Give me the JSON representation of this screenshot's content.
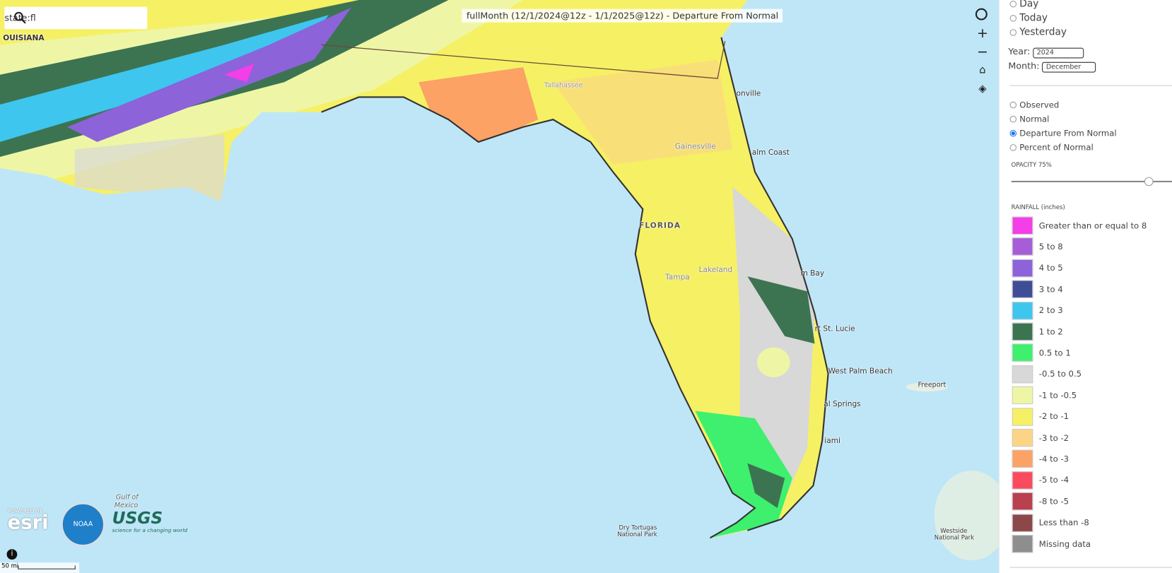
{
  "search": {
    "query": "state:fl"
  },
  "map": {
    "title": "fullMonth (12/1/2024@12z - 1/1/2025@12z) - Departure From Normal",
    "labels": [
      "OUISIANA",
      "onville",
      "alm Coast",
      "Gainesville",
      "FLORIDA",
      "Lakeland",
      "Tampa",
      "m Bay",
      "rt St. Lucie",
      "West Palm Beach",
      "al Springs",
      "iami",
      "Freeport",
      "Dry Tortugas",
      "National Park",
      "Westside",
      "National Park",
      "Gulf of",
      "Mexico",
      "Tallahassee"
    ],
    "scale": "50 mi",
    "credits": {
      "esri_top": "POWERED BY",
      "esri": "esri",
      "usgs": "USGS",
      "usgs_tagline": "science for a changing world",
      "noaa": "NOAA"
    }
  },
  "panel": {
    "periods": [
      "Day",
      "Today",
      "Yesterday"
    ],
    "year_label": "Year:",
    "year": "2024",
    "month_label": "Month:",
    "month": "December",
    "modes": [
      "Observed",
      "Normal",
      "Departure From Normal",
      "Percent of Normal"
    ],
    "selected_mode": "Departure From Normal",
    "opacity_label": "OPACITY 75%",
    "legend_title": "RAINFALL (inches)",
    "legend": [
      {
        "label": "Greater than or equal to 8",
        "color": "#f43ee8"
      },
      {
        "label": "5 to 8",
        "color": "#a65dd8"
      },
      {
        "label": "4 to 5",
        "color": "#8c63d9"
      },
      {
        "label": "3 to 4",
        "color": "#3f4d96"
      },
      {
        "label": "2 to 3",
        "color": "#3ec6ef"
      },
      {
        "label": "1 to 2",
        "color": "#3c7452"
      },
      {
        "label": "0.5 to 1",
        "color": "#3ef06e"
      },
      {
        "label": "-0.5 to 0.5",
        "color": "#d8d8d8"
      },
      {
        "label": "-1 to -0.5",
        "color": "#eef6a6"
      },
      {
        "label": "-2 to -1",
        "color": "#f6f065"
      },
      {
        "label": "-3 to -2",
        "color": "#fbd486"
      },
      {
        "label": "-4 to -3",
        "color": "#fba264"
      },
      {
        "label": "-5 to -4",
        "color": "#fa4a5f"
      },
      {
        "label": "-8 to -5",
        "color": "#b8404f"
      },
      {
        "label": "Less than -8",
        "color": "#8c4848"
      },
      {
        "label": "Missing data",
        "color": "#8e8e8e"
      }
    ]
  }
}
